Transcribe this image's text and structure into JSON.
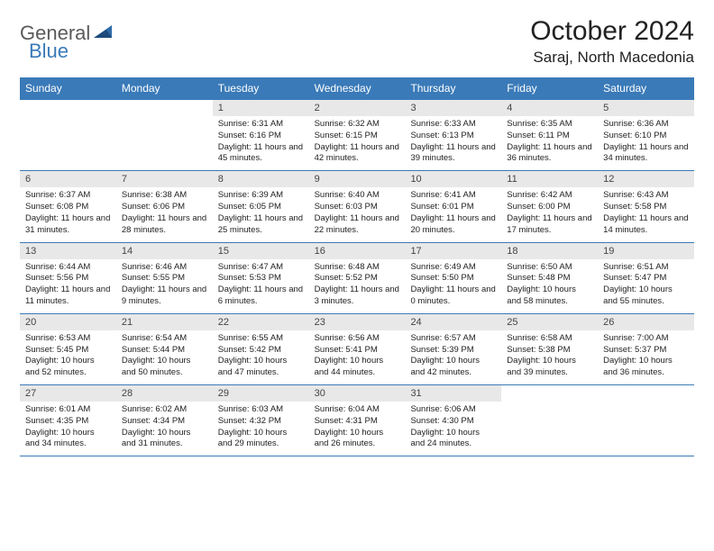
{
  "brand": {
    "part1": "General",
    "part2": "Blue"
  },
  "title": "October 2024",
  "location": "Saraj, North Macedonia",
  "colors": {
    "header_bg": "#3a7ab8",
    "daynum_bg": "#e8e8e8",
    "border": "#3a7ab8",
    "text": "#222222",
    "logo_gray": "#5a5a5a",
    "logo_blue": "#3a7ab8"
  },
  "day_headers": [
    "Sunday",
    "Monday",
    "Tuesday",
    "Wednesday",
    "Thursday",
    "Friday",
    "Saturday"
  ],
  "weeks": [
    [
      null,
      null,
      {
        "n": "1",
        "sr": "Sunrise: 6:31 AM",
        "ss": "Sunset: 6:16 PM",
        "dl": "Daylight: 11 hours and 45 minutes."
      },
      {
        "n": "2",
        "sr": "Sunrise: 6:32 AM",
        "ss": "Sunset: 6:15 PM",
        "dl": "Daylight: 11 hours and 42 minutes."
      },
      {
        "n": "3",
        "sr": "Sunrise: 6:33 AM",
        "ss": "Sunset: 6:13 PM",
        "dl": "Daylight: 11 hours and 39 minutes."
      },
      {
        "n": "4",
        "sr": "Sunrise: 6:35 AM",
        "ss": "Sunset: 6:11 PM",
        "dl": "Daylight: 11 hours and 36 minutes."
      },
      {
        "n": "5",
        "sr": "Sunrise: 6:36 AM",
        "ss": "Sunset: 6:10 PM",
        "dl": "Daylight: 11 hours and 34 minutes."
      }
    ],
    [
      {
        "n": "6",
        "sr": "Sunrise: 6:37 AM",
        "ss": "Sunset: 6:08 PM",
        "dl": "Daylight: 11 hours and 31 minutes."
      },
      {
        "n": "7",
        "sr": "Sunrise: 6:38 AM",
        "ss": "Sunset: 6:06 PM",
        "dl": "Daylight: 11 hours and 28 minutes."
      },
      {
        "n": "8",
        "sr": "Sunrise: 6:39 AM",
        "ss": "Sunset: 6:05 PM",
        "dl": "Daylight: 11 hours and 25 minutes."
      },
      {
        "n": "9",
        "sr": "Sunrise: 6:40 AM",
        "ss": "Sunset: 6:03 PM",
        "dl": "Daylight: 11 hours and 22 minutes."
      },
      {
        "n": "10",
        "sr": "Sunrise: 6:41 AM",
        "ss": "Sunset: 6:01 PM",
        "dl": "Daylight: 11 hours and 20 minutes."
      },
      {
        "n": "11",
        "sr": "Sunrise: 6:42 AM",
        "ss": "Sunset: 6:00 PM",
        "dl": "Daylight: 11 hours and 17 minutes."
      },
      {
        "n": "12",
        "sr": "Sunrise: 6:43 AM",
        "ss": "Sunset: 5:58 PM",
        "dl": "Daylight: 11 hours and 14 minutes."
      }
    ],
    [
      {
        "n": "13",
        "sr": "Sunrise: 6:44 AM",
        "ss": "Sunset: 5:56 PM",
        "dl": "Daylight: 11 hours and 11 minutes."
      },
      {
        "n": "14",
        "sr": "Sunrise: 6:46 AM",
        "ss": "Sunset: 5:55 PM",
        "dl": "Daylight: 11 hours and 9 minutes."
      },
      {
        "n": "15",
        "sr": "Sunrise: 6:47 AM",
        "ss": "Sunset: 5:53 PM",
        "dl": "Daylight: 11 hours and 6 minutes."
      },
      {
        "n": "16",
        "sr": "Sunrise: 6:48 AM",
        "ss": "Sunset: 5:52 PM",
        "dl": "Daylight: 11 hours and 3 minutes."
      },
      {
        "n": "17",
        "sr": "Sunrise: 6:49 AM",
        "ss": "Sunset: 5:50 PM",
        "dl": "Daylight: 11 hours and 0 minutes."
      },
      {
        "n": "18",
        "sr": "Sunrise: 6:50 AM",
        "ss": "Sunset: 5:48 PM",
        "dl": "Daylight: 10 hours and 58 minutes."
      },
      {
        "n": "19",
        "sr": "Sunrise: 6:51 AM",
        "ss": "Sunset: 5:47 PM",
        "dl": "Daylight: 10 hours and 55 minutes."
      }
    ],
    [
      {
        "n": "20",
        "sr": "Sunrise: 6:53 AM",
        "ss": "Sunset: 5:45 PM",
        "dl": "Daylight: 10 hours and 52 minutes."
      },
      {
        "n": "21",
        "sr": "Sunrise: 6:54 AM",
        "ss": "Sunset: 5:44 PM",
        "dl": "Daylight: 10 hours and 50 minutes."
      },
      {
        "n": "22",
        "sr": "Sunrise: 6:55 AM",
        "ss": "Sunset: 5:42 PM",
        "dl": "Daylight: 10 hours and 47 minutes."
      },
      {
        "n": "23",
        "sr": "Sunrise: 6:56 AM",
        "ss": "Sunset: 5:41 PM",
        "dl": "Daylight: 10 hours and 44 minutes."
      },
      {
        "n": "24",
        "sr": "Sunrise: 6:57 AM",
        "ss": "Sunset: 5:39 PM",
        "dl": "Daylight: 10 hours and 42 minutes."
      },
      {
        "n": "25",
        "sr": "Sunrise: 6:58 AM",
        "ss": "Sunset: 5:38 PM",
        "dl": "Daylight: 10 hours and 39 minutes."
      },
      {
        "n": "26",
        "sr": "Sunrise: 7:00 AM",
        "ss": "Sunset: 5:37 PM",
        "dl": "Daylight: 10 hours and 36 minutes."
      }
    ],
    [
      {
        "n": "27",
        "sr": "Sunrise: 6:01 AM",
        "ss": "Sunset: 4:35 PM",
        "dl": "Daylight: 10 hours and 34 minutes."
      },
      {
        "n": "28",
        "sr": "Sunrise: 6:02 AM",
        "ss": "Sunset: 4:34 PM",
        "dl": "Daylight: 10 hours and 31 minutes."
      },
      {
        "n": "29",
        "sr": "Sunrise: 6:03 AM",
        "ss": "Sunset: 4:32 PM",
        "dl": "Daylight: 10 hours and 29 minutes."
      },
      {
        "n": "30",
        "sr": "Sunrise: 6:04 AM",
        "ss": "Sunset: 4:31 PM",
        "dl": "Daylight: 10 hours and 26 minutes."
      },
      {
        "n": "31",
        "sr": "Sunrise: 6:06 AM",
        "ss": "Sunset: 4:30 PM",
        "dl": "Daylight: 10 hours and 24 minutes."
      },
      null,
      null
    ]
  ]
}
